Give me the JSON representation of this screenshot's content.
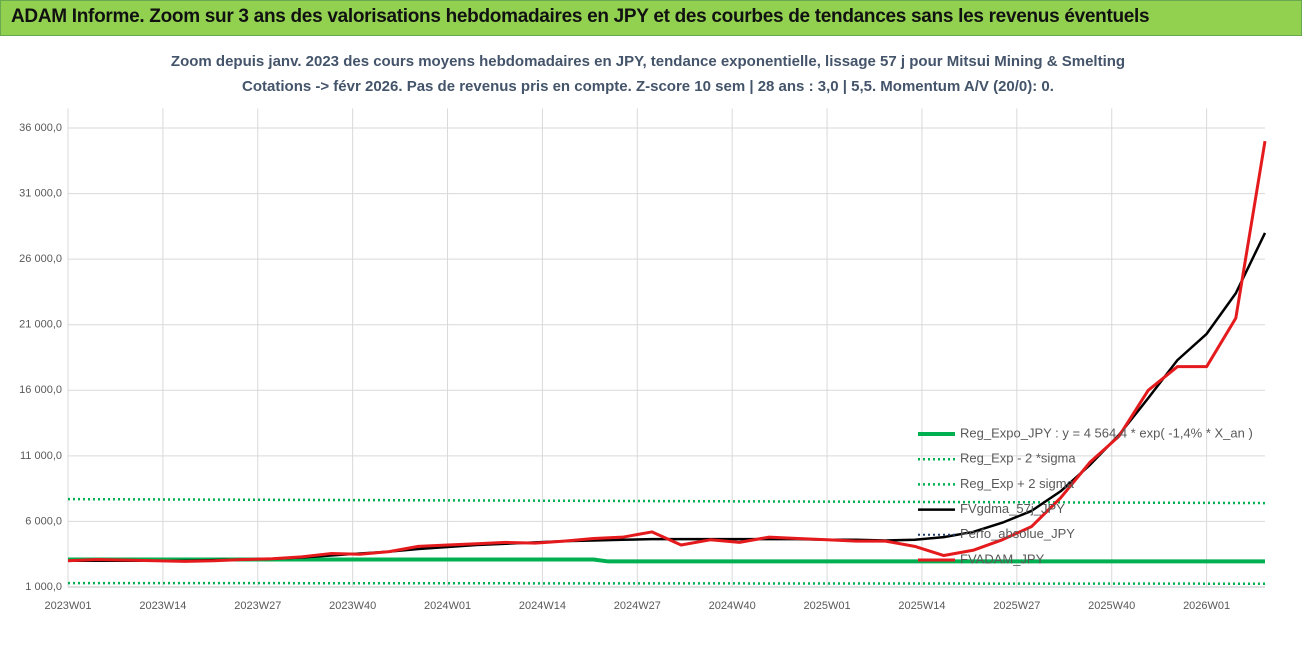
{
  "header": {
    "title": "ADAM Informe. Zoom sur 3 ans des valorisations hebdomadaires en JPY et des courbes de tendances sans les revenus éventuels"
  },
  "chart_data": {
    "type": "line",
    "title": "Zoom depuis janv. 2023 des cours moyens hebdomadaires en JPY, tendance exponentielle, lissage 57 j pour Mitsui Mining & Smelting",
    "subtitle": "Cotations -> févr 2026.  Pas de revenus pris en compte. Z-score 10 sem | 28 ans : 3,0 | 5,5. Momentum A/V (20/0): 0.",
    "x": [
      0,
      4,
      8,
      12,
      16,
      20,
      24,
      28,
      32,
      36,
      40,
      44,
      48,
      52,
      56,
      60,
      64,
      68,
      72,
      76,
      80,
      84,
      88,
      92,
      96,
      100,
      104,
      108,
      112,
      116,
      120,
      124,
      128,
      132,
      136,
      140,
      144,
      148,
      152,
      156,
      160,
      164
    ],
    "xlim": [
      0,
      164
    ],
    "xticks": [
      {
        "value": 0,
        "label": "2023W01"
      },
      {
        "value": 13,
        "label": "2023W14"
      },
      {
        "value": 26,
        "label": "2023W27"
      },
      {
        "value": 39,
        "label": "2023W40"
      },
      {
        "value": 52,
        "label": "2024W01"
      },
      {
        "value": 65,
        "label": "2024W14"
      },
      {
        "value": 78,
        "label": "2024W27"
      },
      {
        "value": 91,
        "label": "2024W40"
      },
      {
        "value": 104,
        "label": "2025W01"
      },
      {
        "value": 117,
        "label": "2025W14"
      },
      {
        "value": 130,
        "label": "2025W27"
      },
      {
        "value": 143,
        "label": "2025W40"
      },
      {
        "value": 156,
        "label": "2026W01"
      }
    ],
    "ylim": [
      1000,
      37500
    ],
    "yticks": [
      {
        "value": 1000,
        "label": "1 000,0"
      },
      {
        "value": 6000,
        "label": "6 000,0"
      },
      {
        "value": 11000,
        "label": "11 000,0"
      },
      {
        "value": 16000,
        "label": "16 000,0"
      },
      {
        "value": 21000,
        "label": "21 000,0"
      },
      {
        "value": 26000,
        "label": "26 000,0"
      },
      {
        "value": 31000,
        "label": "31 000,0"
      },
      {
        "value": 36000,
        "label": "36 000,0"
      }
    ],
    "grid": true,
    "series": [
      {
        "name": "Reg_Expo_JPY : y = 4 564,4 * exp( -1,4% *  X_an )",
        "color": "#00b050",
        "style": "solid",
        "line_width": 4,
        "x": [
          0,
          72,
          74,
          164
        ],
        "values": [
          3100,
          3100,
          2950,
          2950
        ]
      },
      {
        "name": "Reg_Exp - 2 *sigma",
        "color": "#00b050",
        "style": "dotted",
        "line_width": 2.5,
        "x": [
          0,
          164
        ],
        "values": [
          1300,
          1250
        ]
      },
      {
        "name": "Reg_Exp + 2 sigma",
        "color": "#00b050",
        "style": "dotted",
        "line_width": 2.5,
        "x": [
          0,
          164
        ],
        "values": [
          7700,
          7400
        ]
      },
      {
        "name": "FVgdma_57j_JPY",
        "color": "#000000",
        "style": "solid",
        "line_width": 2.5,
        "values": [
          3000,
          3000,
          3000,
          3000,
          3000,
          3050,
          3100,
          3150,
          3250,
          3400,
          3550,
          3700,
          3900,
          4050,
          4200,
          4300,
          4400,
          4500,
          4550,
          4600,
          4650,
          4650,
          4650,
          4650,
          4650,
          4650,
          4600,
          4600,
          4550,
          4600,
          4800,
          5200,
          5900,
          6800,
          8300,
          10300,
          12600,
          15400,
          18300,
          20300,
          23400,
          28000
        ]
      },
      {
        "name": "Perfo_absolue_JPY",
        "color": "#1f3864",
        "style": "dotted",
        "line_width": 2,
        "x": [],
        "values": []
      },
      {
        "name": "FVADAM_JPY",
        "color": "#e41a1c",
        "style": "solid",
        "line_width": 3,
        "values": [
          3000,
          3100,
          3050,
          3000,
          2950,
          3000,
          3100,
          3150,
          3300,
          3550,
          3500,
          3700,
          4100,
          4200,
          4300,
          4400,
          4350,
          4500,
          4700,
          4800,
          5200,
          4200,
          4600,
          4400,
          4800,
          4700,
          4600,
          4500,
          4500,
          4100,
          3400,
          3800,
          4600,
          5600,
          7800,
          10500,
          12500,
          16000,
          17800,
          17800,
          21500,
          35000
        ]
      }
    ]
  }
}
